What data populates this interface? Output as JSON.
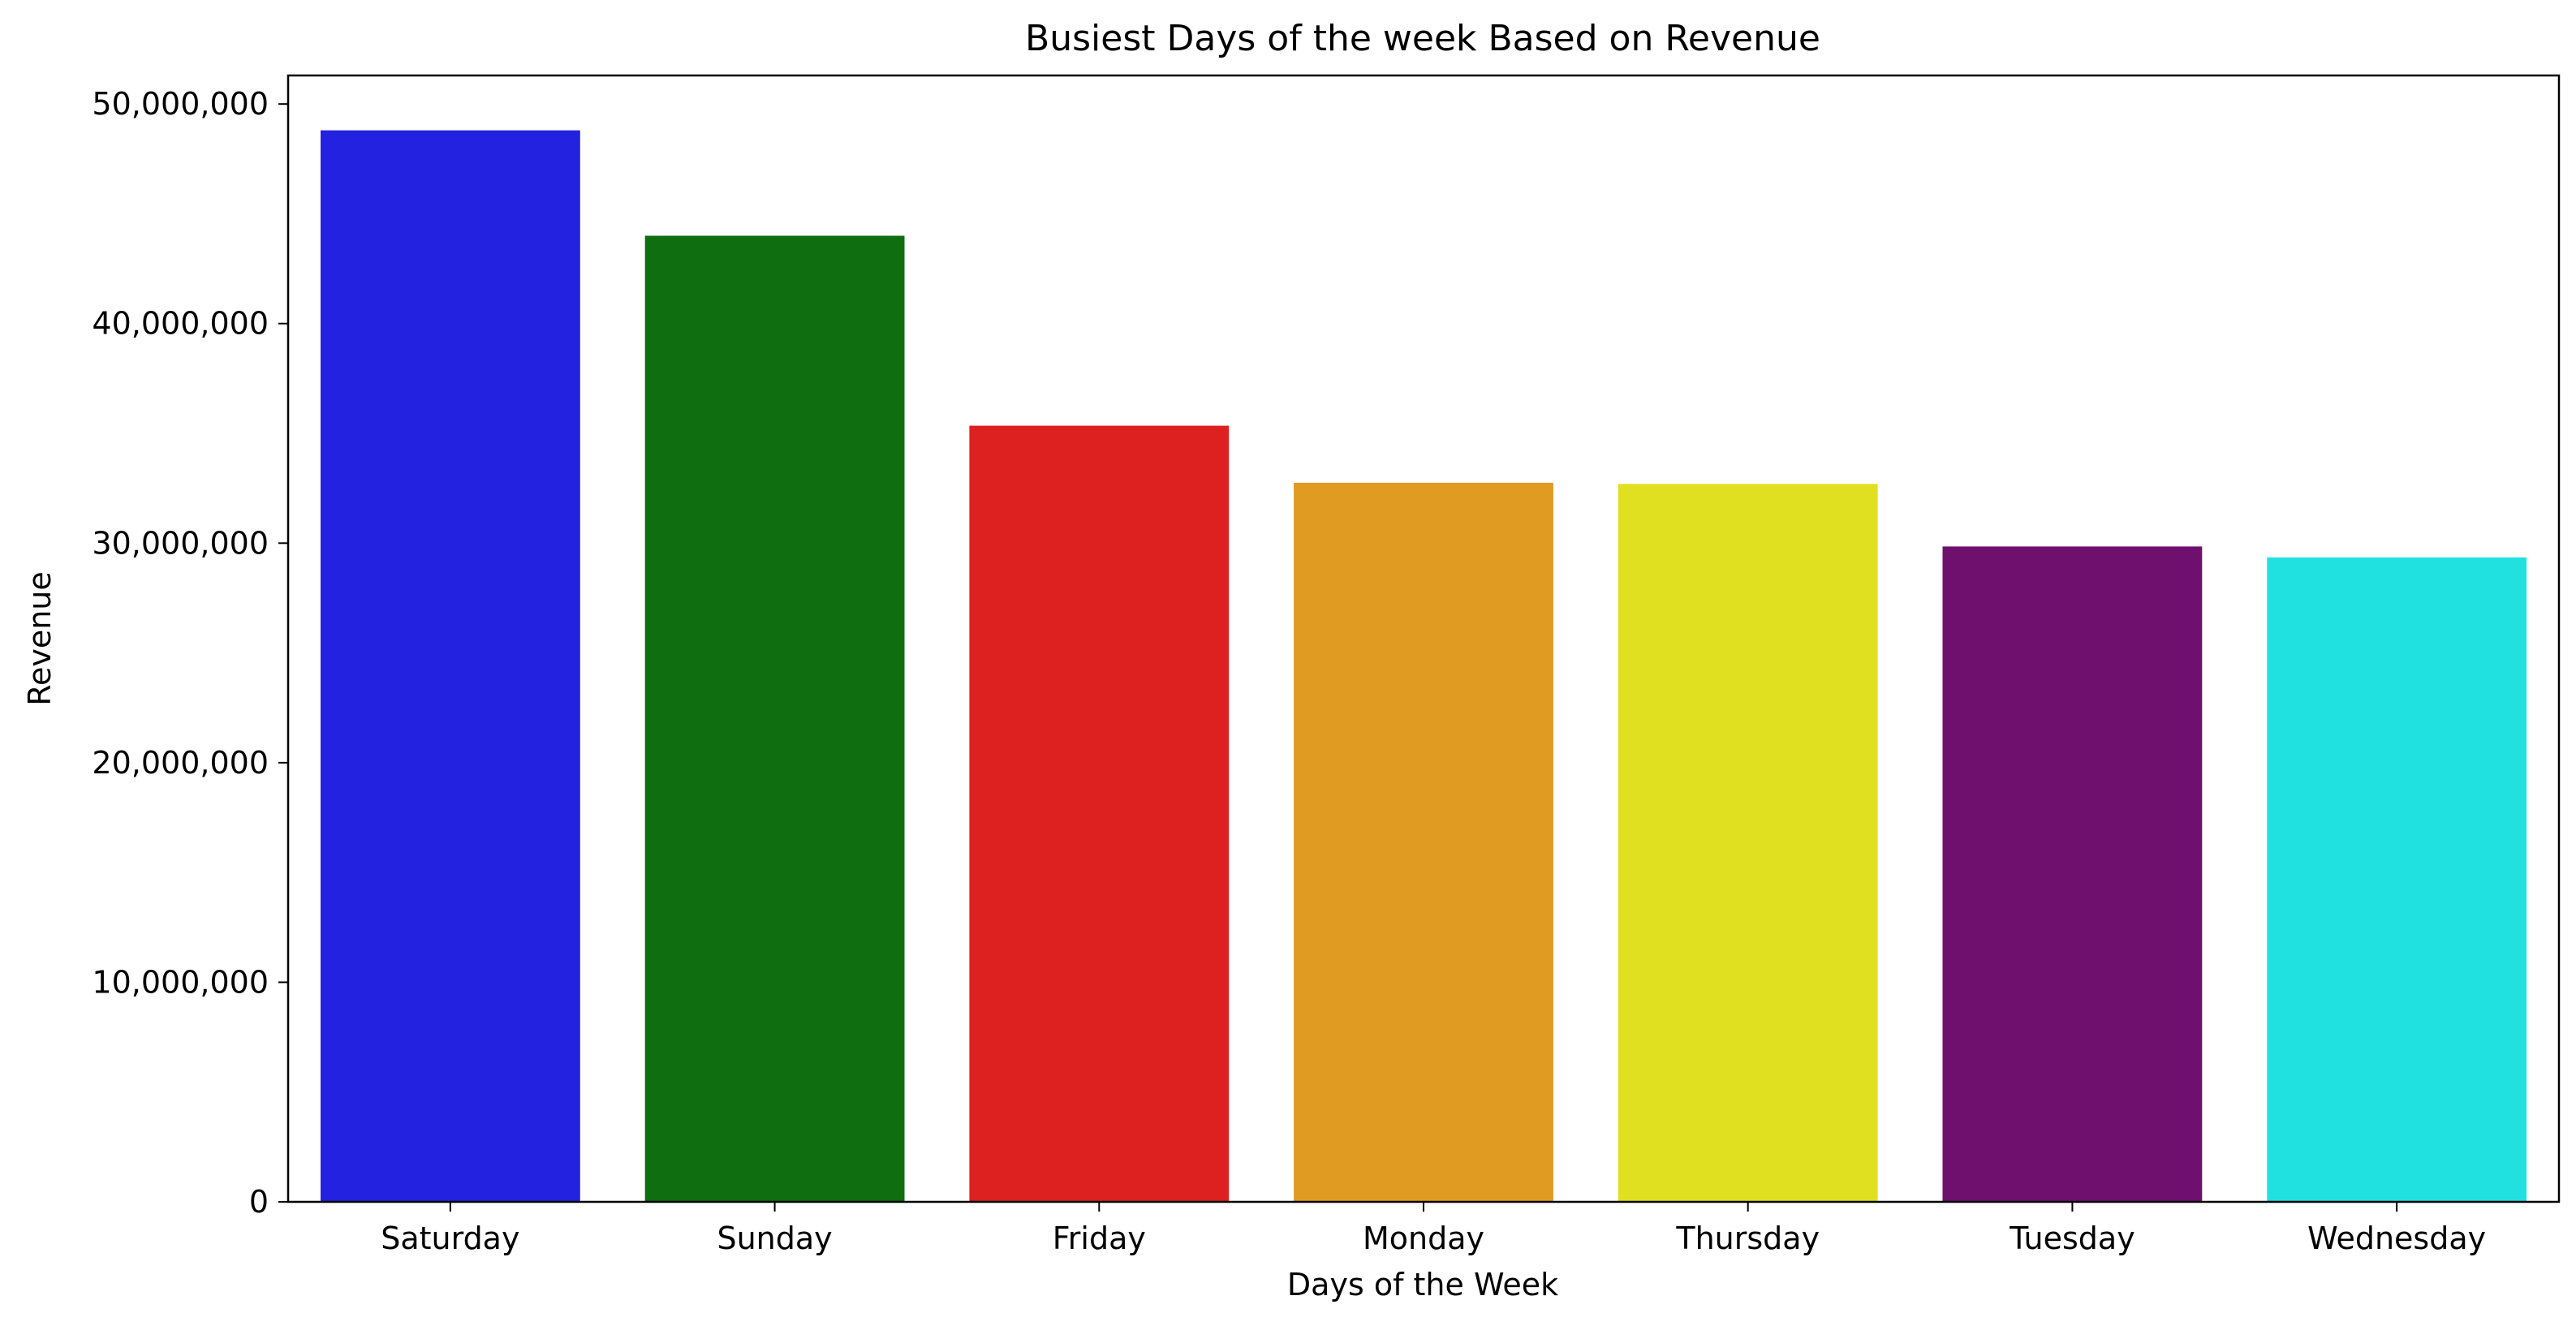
{
  "chart_data": {
    "type": "bar",
    "title": "Busiest Days of the week Based on Revenue",
    "xlabel": "Days of the Week",
    "ylabel": "Revenue",
    "categories": [
      "Saturday",
      "Sunday",
      "Friday",
      "Monday",
      "Thursday",
      "Tuesday",
      "Wednesday"
    ],
    "values": [
      48800000,
      44000000,
      35350000,
      32750000,
      32700000,
      29850000,
      29350000
    ],
    "colors": [
      "#2222e0",
      "#0e6e10",
      "#dd2020",
      "#e09b22",
      "#e0e020",
      "#70106e",
      "#20e0e0"
    ],
    "ylim": [
      0,
      51300000
    ],
    "yticks": [
      0,
      10000000,
      20000000,
      30000000,
      40000000,
      50000000
    ],
    "ytick_labels": [
      "0",
      "10,000,000",
      "20,000,000",
      "30,000,000",
      "40,000,000",
      "50,000,000"
    ],
    "grid": false,
    "legend": "none"
  }
}
